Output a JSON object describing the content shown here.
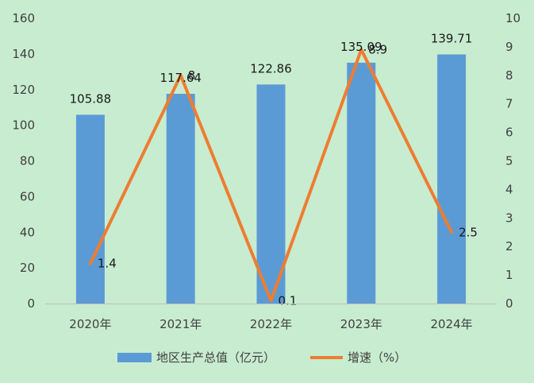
{
  "chart_data": {
    "type": "bar",
    "categories": [
      "2020年",
      "2021年",
      "2022年",
      "2023年",
      "2024年"
    ],
    "series": [
      {
        "name": "地区生产总值（亿元）",
        "type": "bar",
        "axis": "left",
        "values": [
          105.88,
          117.64,
          122.86,
          135.09,
          139.71
        ],
        "labels": [
          "105.88",
          "117.64",
          "122.86",
          "135.09",
          "139.71"
        ],
        "color": "#5b9bd5"
      },
      {
        "name": "增速（%）",
        "type": "line",
        "axis": "right",
        "values": [
          1.4,
          8,
          0.1,
          8.9,
          2.5
        ],
        "labels": [
          "1.4",
          "8",
          "0.1",
          "8.9",
          "2.5"
        ],
        "color": "#ed7d31"
      }
    ],
    "y_left": {
      "min": 0,
      "max": 160,
      "ticks": [
        "0",
        "20",
        "40",
        "60",
        "80",
        "100",
        "120",
        "140",
        "160"
      ]
    },
    "y_right": {
      "min": 0,
      "max": 10,
      "ticks": [
        "0",
        "1",
        "2",
        "3",
        "4",
        "5",
        "6",
        "7",
        "8",
        "9",
        "10"
      ]
    },
    "grid": false,
    "legend_position": "bottom",
    "background": "#c8ecd0"
  }
}
